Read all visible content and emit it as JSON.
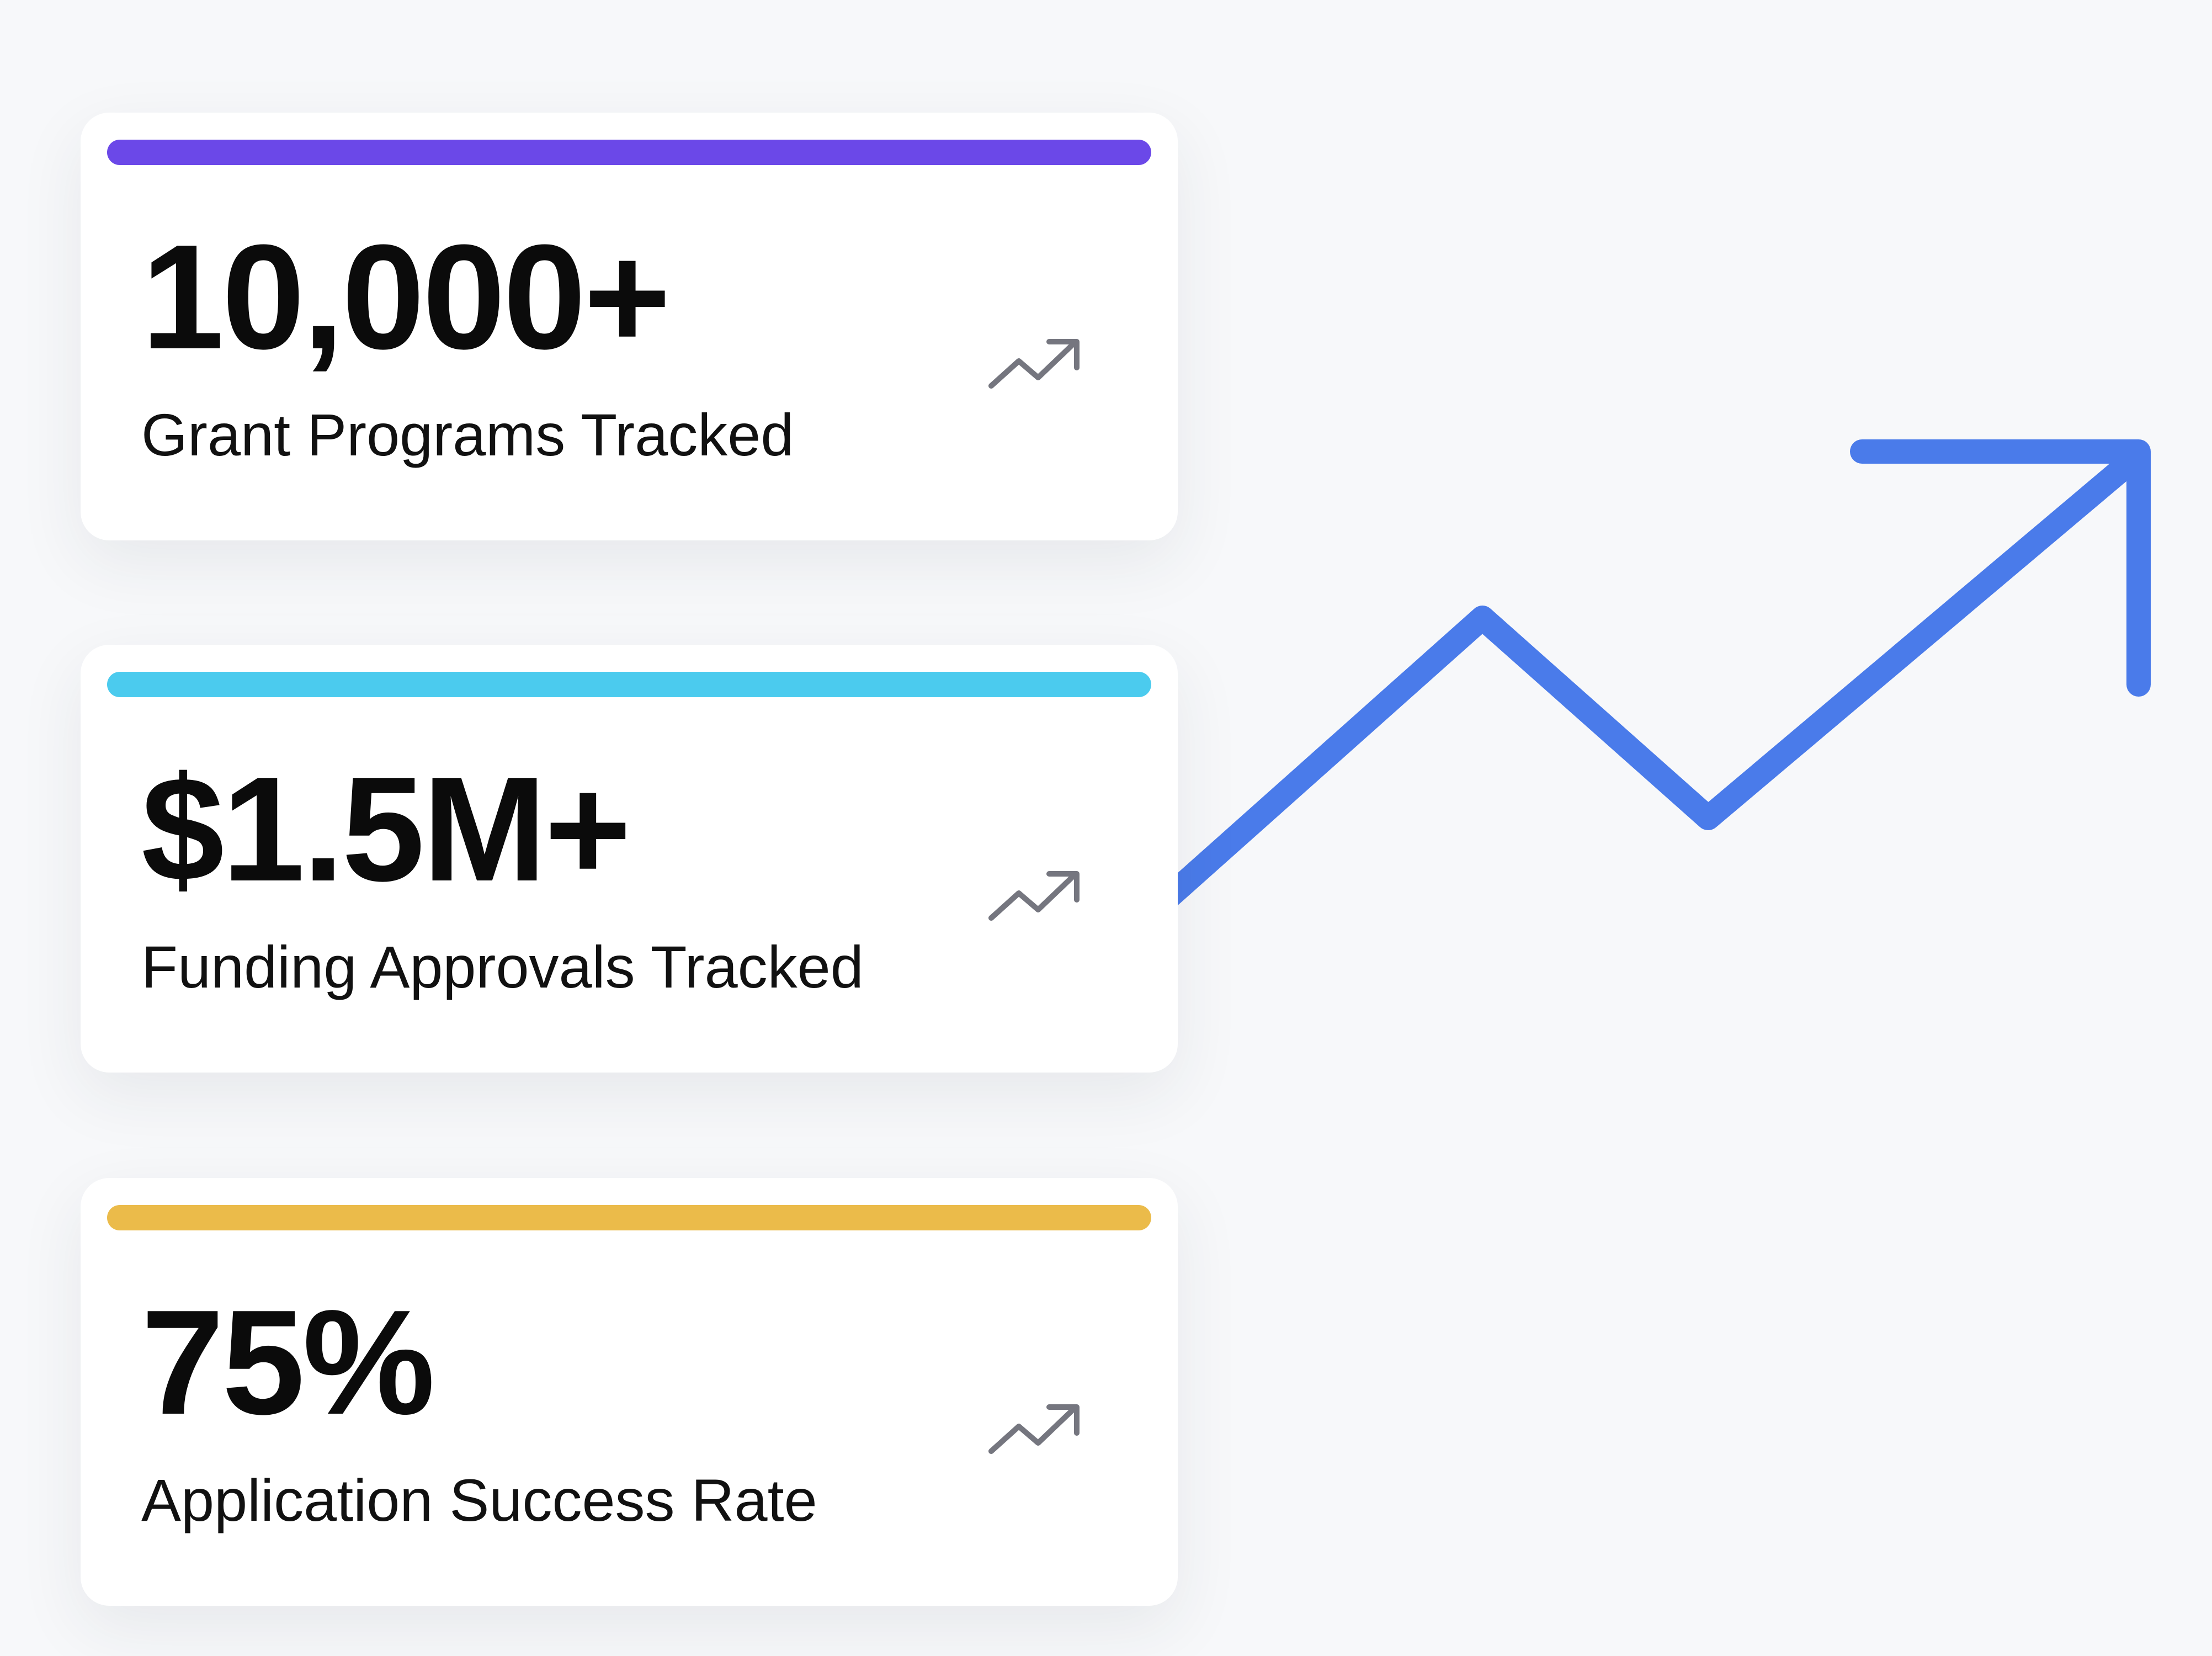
{
  "cards": [
    {
      "value": "10,000+",
      "label": "Grant Programs Tracked"
    },
    {
      "value": "$1.5M+",
      "label": "Funding Approvals Tracked"
    },
    {
      "value": "75%",
      "label": "Application Success Rate"
    }
  ]
}
